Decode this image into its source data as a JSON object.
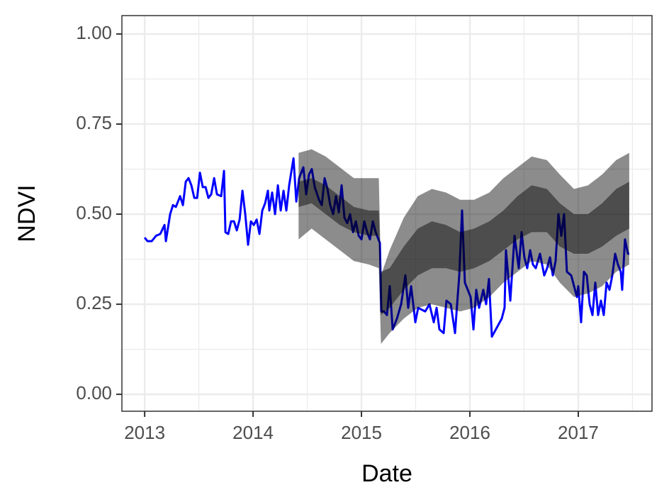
{
  "chart_data": {
    "type": "line",
    "xlabel": "Date",
    "ylabel": "NDVI",
    "xlim": [
      2012.79,
      2017.68
    ],
    "xticks": [
      2013,
      2014,
      2015,
      2016,
      2017
    ],
    "ylim": [
      -0.047,
      1.051
    ],
    "yticks": [
      {
        "value": 0,
        "label": "0.00"
      },
      {
        "value": 0.25,
        "label": "0.25"
      },
      {
        "value": 0.5,
        "label": "0.50"
      },
      {
        "value": 0.75,
        "label": "0.75"
      },
      {
        "value": 1,
        "label": "1.00"
      }
    ],
    "grid": true,
    "series": [
      {
        "color": "#0000ff",
        "x": [
          2013.0,
          2013.026,
          2013.065,
          2013.105,
          2013.144,
          2013.183,
          2013.196,
          2013.235,
          2013.261,
          2013.288,
          2013.327,
          2013.353,
          2013.379,
          2013.405,
          2013.431,
          2013.458,
          2013.484,
          2013.51,
          2013.536,
          2013.562,
          2013.588,
          2013.614,
          2013.641,
          2013.667,
          2013.706,
          2013.732,
          2013.745,
          2013.771,
          2013.797,
          2013.824,
          2013.85,
          2013.876,
          2013.902,
          2013.928,
          2013.954,
          2013.98,
          2014.007,
          2014.033,
          2014.059,
          2014.085,
          2014.111,
          2014.137,
          2014.15,
          2014.176,
          2014.203,
          2014.229,
          2014.255,
          2014.281,
          2014.307,
          2014.333,
          2014.373,
          2014.399,
          2014.425,
          2014.464,
          2014.49,
          2014.516,
          2014.542,
          2014.569,
          2014.608,
          2014.634,
          2014.66,
          2014.686,
          2014.712,
          2014.739,
          2014.765,
          2014.791,
          2014.817,
          2014.843,
          2014.869,
          2014.895,
          2014.922,
          2014.948,
          2014.974,
          2015.0,
          2015.026,
          2015.052,
          2015.078,
          2015.105,
          2015.131,
          2015.157,
          2015.17,
          2015.183,
          2015.209,
          2015.235,
          2015.261,
          2015.288,
          2015.327,
          2015.366,
          2015.405,
          2015.431,
          2015.458,
          2015.497,
          2015.523,
          2015.588,
          2015.627,
          2015.667,
          2015.693,
          2015.719,
          2015.758,
          2015.784,
          2015.824,
          2015.863,
          2015.902,
          2015.928,
          2015.954,
          2016.007,
          2016.033,
          2016.059,
          2016.085,
          2016.124,
          2016.15,
          2016.176,
          2016.203,
          2016.294,
          2016.32,
          2016.333,
          2016.373,
          2016.412,
          2016.451,
          2016.477,
          2016.503,
          2016.529,
          2016.556,
          2016.582,
          2016.608,
          2016.647,
          2016.686,
          2016.712,
          2016.739,
          2016.765,
          2016.791,
          2016.817,
          2016.843,
          2016.869,
          2016.895,
          2016.935,
          2016.961,
          2016.987,
          2017.0,
          2017.026,
          2017.052,
          2017.078,
          2017.105,
          2017.131,
          2017.157,
          2017.183,
          2017.209,
          2017.235,
          2017.261,
          2017.288,
          2017.314,
          2017.34,
          2017.366,
          2017.392,
          2017.405,
          2017.431,
          2017.458,
          2017.471
        ],
        "values": [
          0.435,
          0.425,
          0.425,
          0.44,
          0.445,
          0.47,
          0.425,
          0.5,
          0.525,
          0.52,
          0.55,
          0.525,
          0.59,
          0.6,
          0.58,
          0.545,
          0.545,
          0.615,
          0.575,
          0.575,
          0.545,
          0.555,
          0.6,
          0.555,
          0.55,
          0.62,
          0.45,
          0.445,
          0.48,
          0.48,
          0.455,
          0.485,
          0.565,
          0.5,
          0.415,
          0.48,
          0.47,
          0.485,
          0.445,
          0.51,
          0.53,
          0.565,
          0.51,
          0.56,
          0.5,
          0.58,
          0.51,
          0.565,
          0.51,
          0.58,
          0.655,
          0.535,
          0.6,
          0.63,
          0.555,
          0.61,
          0.625,
          0.575,
          0.54,
          0.525,
          0.6,
          0.57,
          0.525,
          0.5,
          0.55,
          0.505,
          0.58,
          0.49,
          0.475,
          0.5,
          0.45,
          0.48,
          0.44,
          0.43,
          0.48,
          0.45,
          0.43,
          0.48,
          0.45,
          0.43,
          0.42,
          0.23,
          0.23,
          0.22,
          0.3,
          0.18,
          0.21,
          0.25,
          0.33,
          0.24,
          0.3,
          0.2,
          0.24,
          0.23,
          0.25,
          0.2,
          0.24,
          0.18,
          0.17,
          0.26,
          0.25,
          0.17,
          0.33,
          0.51,
          0.31,
          0.27,
          0.18,
          0.29,
          0.24,
          0.29,
          0.25,
          0.32,
          0.16,
          0.21,
          0.24,
          0.4,
          0.26,
          0.44,
          0.35,
          0.45,
          0.38,
          0.35,
          0.4,
          0.36,
          0.35,
          0.39,
          0.33,
          0.35,
          0.38,
          0.33,
          0.37,
          0.5,
          0.44,
          0.5,
          0.34,
          0.33,
          0.3,
          0.27,
          0.3,
          0.2,
          0.34,
          0.33,
          0.25,
          0.22,
          0.31,
          0.22,
          0.26,
          0.22,
          0.31,
          0.29,
          0.33,
          0.39,
          0.36,
          0.34,
          0.29,
          0.43,
          0.39,
          0.39
        ]
      }
    ],
    "bands": [
      {
        "color": "#000000",
        "opacity": 0.45,
        "x": [
          2014.42,
          2014.54,
          2014.67,
          2014.8,
          2014.93,
          2015.07,
          2015.16,
          2015.18,
          2015.26,
          2015.39,
          2015.52,
          2015.65,
          2015.78,
          2015.91,
          2016.04,
          2016.18,
          2016.31,
          2016.44,
          2016.57,
          2016.71,
          2016.83,
          2016.96,
          2017.09,
          2017.22,
          2017.35,
          2017.47
        ],
        "upper": [
          0.67,
          0.68,
          0.66,
          0.63,
          0.6,
          0.6,
          0.6,
          0.33,
          0.4,
          0.49,
          0.55,
          0.57,
          0.56,
          0.54,
          0.54,
          0.56,
          0.6,
          0.63,
          0.66,
          0.65,
          0.61,
          0.57,
          0.58,
          0.61,
          0.65,
          0.67
        ],
        "lower": [
          0.43,
          0.46,
          0.43,
          0.4,
          0.37,
          0.36,
          0.35,
          0.14,
          0.17,
          0.21,
          0.24,
          0.25,
          0.24,
          0.23,
          0.24,
          0.27,
          0.31,
          0.34,
          0.37,
          0.36,
          0.31,
          0.27,
          0.28,
          0.3,
          0.34,
          0.36
        ]
      },
      {
        "color": "#000000",
        "opacity": 0.45,
        "x": [
          2014.42,
          2014.54,
          2014.67,
          2014.8,
          2014.93,
          2015.07,
          2015.16,
          2015.18,
          2015.26,
          2015.39,
          2015.52,
          2015.65,
          2015.78,
          2015.91,
          2016.04,
          2016.18,
          2016.31,
          2016.44,
          2016.57,
          2016.71,
          2016.83,
          2016.96,
          2017.09,
          2017.22,
          2017.35,
          2017.47
        ],
        "upper": [
          0.59,
          0.6,
          0.58,
          0.55,
          0.52,
          0.51,
          0.51,
          0.34,
          0.35,
          0.41,
          0.46,
          0.48,
          0.47,
          0.45,
          0.46,
          0.48,
          0.51,
          0.55,
          0.58,
          0.57,
          0.53,
          0.5,
          0.5,
          0.53,
          0.57,
          0.59
        ],
        "lower": [
          0.52,
          0.53,
          0.5,
          0.47,
          0.45,
          0.44,
          0.44,
          0.22,
          0.24,
          0.29,
          0.33,
          0.35,
          0.35,
          0.34,
          0.35,
          0.37,
          0.4,
          0.43,
          0.45,
          0.45,
          0.41,
          0.39,
          0.39,
          0.41,
          0.44,
          0.46
        ]
      }
    ]
  }
}
